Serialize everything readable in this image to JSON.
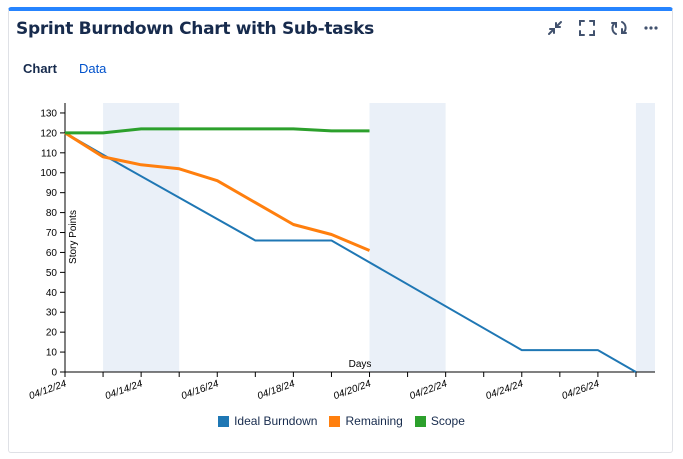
{
  "header": {
    "title": "Sprint Burndown Chart with Sub-tasks",
    "tools": [
      {
        "name": "collapse-icon"
      },
      {
        "name": "fullscreen-icon"
      },
      {
        "name": "refresh-icon"
      },
      {
        "name": "more-icon"
      }
    ]
  },
  "tabs": [
    {
      "label": "Chart",
      "active": true
    },
    {
      "label": "Data",
      "active": false
    }
  ],
  "colors": {
    "ideal": "#1f77b4",
    "remaining": "#ff7f0e",
    "scope": "#2ca02c",
    "nonworking": "#eaf0f8",
    "accent": "#2684ff"
  },
  "chart_data": {
    "type": "line",
    "title": "",
    "xlabel": "Days",
    "ylabel": "Story Points",
    "ylim": [
      0,
      135
    ],
    "yticks": [
      0,
      10,
      20,
      30,
      40,
      50,
      60,
      70,
      80,
      90,
      100,
      110,
      120,
      130
    ],
    "xlim": [
      "2024-04-12",
      "2024-04-27T12:00"
    ],
    "xticks": [
      "2024-04-12",
      "2024-04-13",
      "2024-04-14",
      "2024-04-15",
      "2024-04-16",
      "2024-04-17",
      "2024-04-18",
      "2024-04-19",
      "2024-04-20",
      "2024-04-21",
      "2024-04-22",
      "2024-04-23",
      "2024-04-24",
      "2024-04-25",
      "2024-04-26",
      "2024-04-27"
    ],
    "xtick_labels": [
      "04/12/24",
      "",
      "04/14/24",
      "",
      "04/16/24",
      "",
      "04/18/24",
      "",
      "04/20/24",
      "",
      "04/22/24",
      "",
      "04/24/24",
      "",
      "04/26/24",
      ""
    ],
    "nonworking_periods": [
      [
        "2024-04-13",
        "2024-04-15"
      ],
      [
        "2024-04-20",
        "2024-04-22"
      ],
      [
        "2024-04-27",
        "2024-04-27T12:00"
      ]
    ],
    "series": [
      {
        "name": "Ideal Burndown",
        "color": "#1f77b4",
        "points": [
          [
            "2024-04-12",
            120
          ],
          [
            "2024-04-13",
            109
          ],
          [
            "2024-04-17",
            66
          ],
          [
            "2024-04-19",
            66
          ],
          [
            "2024-04-24",
            11
          ],
          [
            "2024-04-26",
            11
          ],
          [
            "2024-04-27",
            0
          ]
        ]
      },
      {
        "name": "Remaining",
        "color": "#ff7f0e",
        "points": [
          [
            "2024-04-12",
            120
          ],
          [
            "2024-04-13",
            108
          ],
          [
            "2024-04-14",
            104
          ],
          [
            "2024-04-15",
            102
          ],
          [
            "2024-04-16",
            96
          ],
          [
            "2024-04-17",
            85
          ],
          [
            "2024-04-18",
            74
          ],
          [
            "2024-04-19",
            69
          ],
          [
            "2024-04-20",
            61
          ]
        ]
      },
      {
        "name": "Scope",
        "color": "#2ca02c",
        "points": [
          [
            "2024-04-12",
            120
          ],
          [
            "2024-04-13",
            120
          ],
          [
            "2024-04-14",
            122
          ],
          [
            "2024-04-15",
            122
          ],
          [
            "2024-04-16",
            122
          ],
          [
            "2024-04-17",
            122
          ],
          [
            "2024-04-18",
            122
          ],
          [
            "2024-04-19",
            121
          ],
          [
            "2024-04-20",
            121
          ]
        ]
      }
    ],
    "legend": [
      {
        "label": "Ideal Burndown",
        "color": "#1f77b4"
      },
      {
        "label": "Remaining",
        "color": "#ff7f0e"
      },
      {
        "label": "Scope",
        "color": "#2ca02c"
      }
    ],
    "legend_position": "bottom",
    "grid": false
  }
}
